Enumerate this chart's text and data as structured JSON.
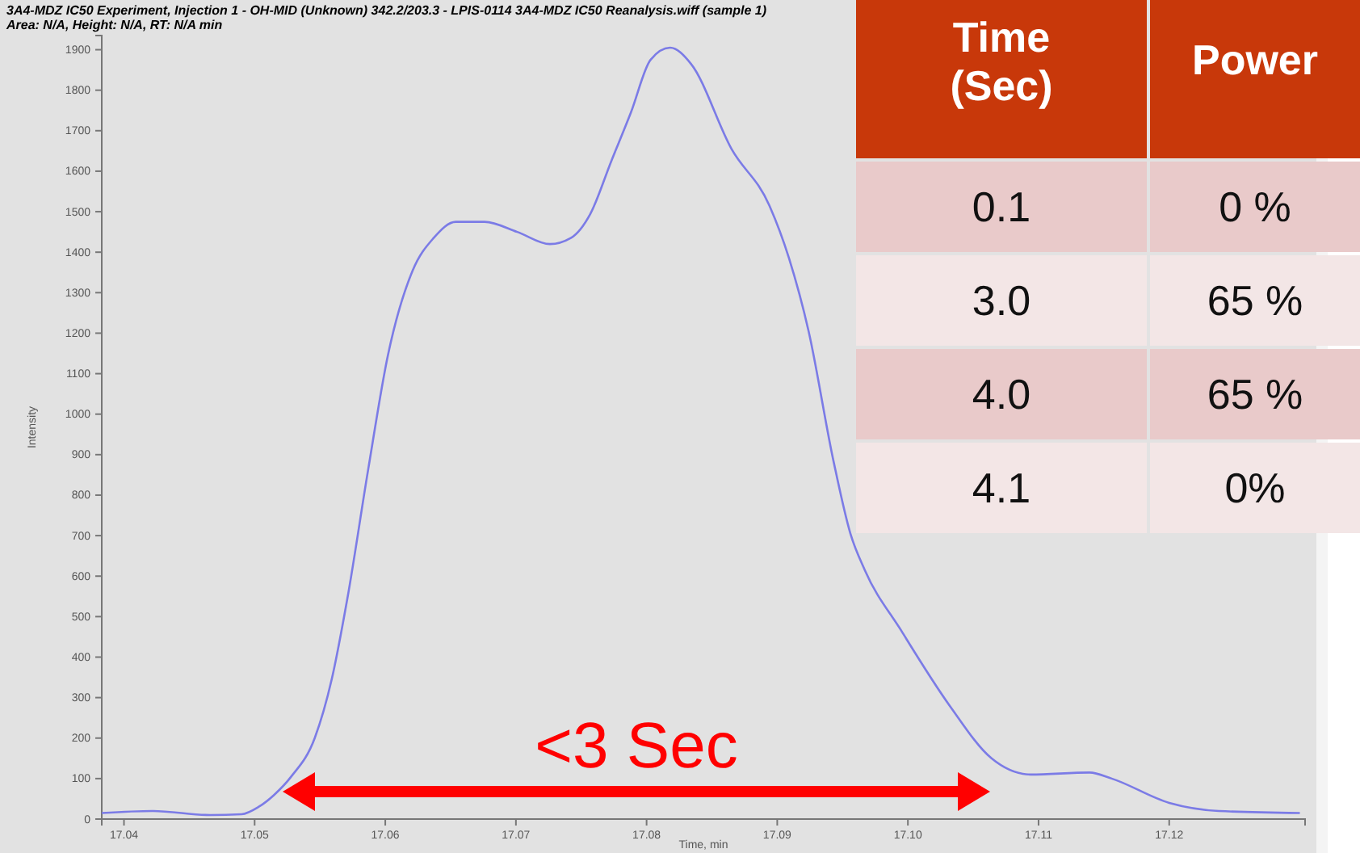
{
  "chart_data": [
    {
      "type": "line",
      "title": "3A4-MDZ IC50 Experiment, Injection 1 - OH-MID (Unknown) 342.2/203.3 - LPIS-0114 3A4-MDZ IC50 Reanalysis.wiff (sample 1)",
      "subtitle": "Area: N/A, Height: N/A, RT: N/A min",
      "xlabel": "Time, min",
      "ylabel": "Intensity",
      "xlim": [
        17.0383,
        17.1304
      ],
      "ylim": [
        0,
        1935
      ],
      "xticks": [
        {
          "value": 17.04,
          "label": "17.04"
        },
        {
          "value": 17.05,
          "label": "17.05"
        },
        {
          "value": 17.06,
          "label": "17.06"
        },
        {
          "value": 17.07,
          "label": "17.07"
        },
        {
          "value": 17.08,
          "label": "17.08"
        },
        {
          "value": 17.09,
          "label": "17.09"
        },
        {
          "value": 17.1,
          "label": "17.10"
        },
        {
          "value": 17.11,
          "label": "17.11"
        },
        {
          "value": 17.12,
          "label": "17.12"
        }
      ],
      "yticks": [
        0,
        100,
        200,
        300,
        400,
        500,
        600,
        700,
        800,
        900,
        1000,
        1100,
        1200,
        1300,
        1400,
        1500,
        1600,
        1700,
        1800,
        1900
      ],
      "series": [
        {
          "color": "#7b7be6",
          "x": [
            17.0383,
            17.0422,
            17.0466,
            17.049,
            17.0503,
            17.0515,
            17.0528,
            17.0546,
            17.0559,
            17.0571,
            17.0587,
            17.0602,
            17.0621,
            17.0637,
            17.0654,
            17.0676,
            17.0701,
            17.0726,
            17.0742,
            17.0757,
            17.0773,
            17.0788,
            17.0803,
            17.0818,
            17.0834,
            17.0865,
            17.0894,
            17.0909,
            17.0924,
            17.0943,
            17.0956,
            17.0967,
            17.0995,
            17.1032,
            17.1064,
            17.1094,
            17.1139,
            17.1156,
            17.12,
            17.1238,
            17.13
          ],
          "values": [
            15,
            20,
            10,
            12,
            30,
            60,
            105,
            200,
            345,
            545,
            865,
            1145,
            1355,
            1435,
            1475,
            1475,
            1450,
            1420,
            1435,
            1495,
            1625,
            1745,
            1875,
            1905,
            1865,
            1655,
            1515,
            1385,
            1205,
            885,
            705,
            615,
            465,
            280,
            150,
            110,
            115,
            100,
            40,
            20,
            15
          ]
        }
      ],
      "annotations": [
        "<3 Sec"
      ]
    },
    {
      "type": "other",
      "categories": [
        "Time\n(Sec)",
        "Power"
      ],
      "cell_labels": [
        [
          "0.1",
          "0 %"
        ],
        [
          "3.0",
          "65 %"
        ],
        [
          "4.0",
          "65 %"
        ],
        [
          "4.1",
          "0%"
        ]
      ]
    }
  ]
}
